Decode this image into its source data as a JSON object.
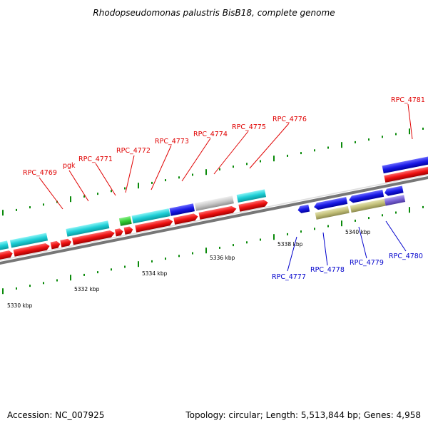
{
  "title": "Rhodopseudomonas palustris BisB18, complete genome",
  "footer": {
    "accession": "Accession: NC_007925",
    "topology": "Topology: circular; Length: 5,513,844 bp; Genes: 4,958"
  },
  "colors": {
    "cyan": "#1ecfd6",
    "red": "#ee1111",
    "blue": "#1a1ae6",
    "gray": "#c8c8c8",
    "green": "#33cc33",
    "khaki": "#c2bf78",
    "purple": "#7a63d6",
    "tick": "#0a8a0a",
    "label_red": "#e00000",
    "label_blue": "#0000cc"
  },
  "kbp_labels": [
    "5330 kbp",
    "5332 kbp",
    "5334 kbp",
    "5336 kbp",
    "5338 kbp",
    "5340 kbp"
  ],
  "gene_labels_top": [
    "RPC_4769",
    "pgk",
    "RPC_4771",
    "RPC_4772",
    "RPC_4773",
    "RPC_4774",
    "RPC_4775",
    "RPC_4776",
    "RPC_4781"
  ],
  "gene_labels_bottom": [
    "RPC_4777",
    "RPC_4778",
    "RPC_4779",
    "RPC_4780"
  ]
}
